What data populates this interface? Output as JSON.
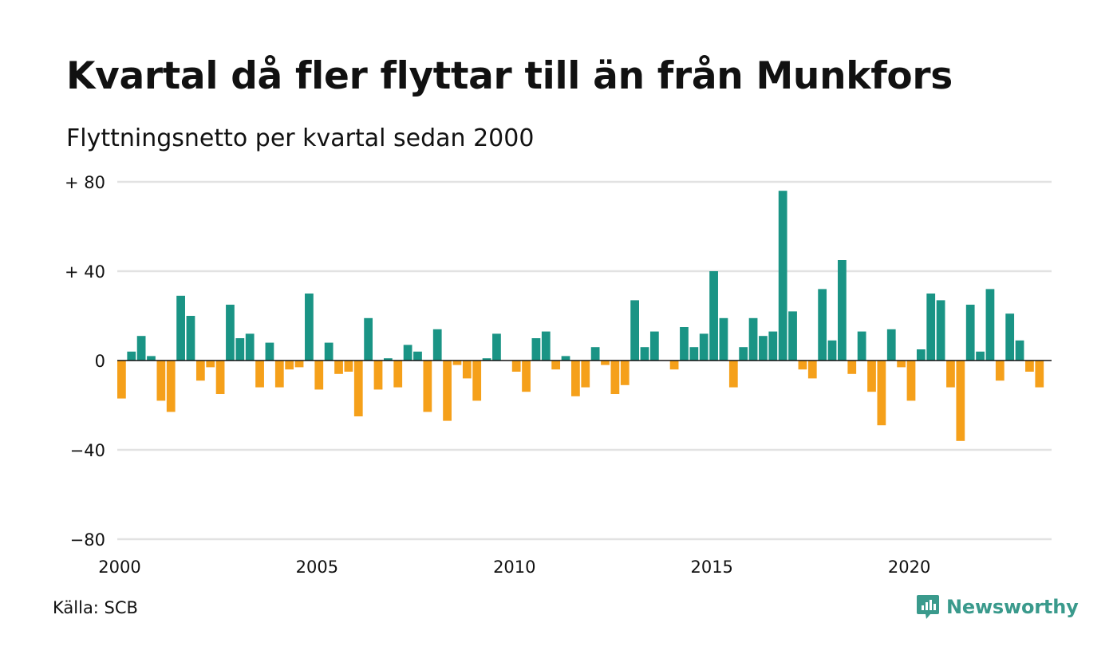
{
  "header": {
    "title": "Kvartal då fler flyttar till än från Munkfors",
    "subtitle": "Flyttningsnetto per kvartal sedan 2000"
  },
  "footer": {
    "source": "Källa: SCB",
    "brand": "Newsworthy",
    "brand_icon": "newsworthy-logo-icon"
  },
  "colors": {
    "positive": "#1a9485",
    "negative": "#f5a01a",
    "grid": "#e2e2e2",
    "zero_line": "#111111",
    "brand": "#3a9a8c"
  },
  "chart_data": {
    "type": "bar",
    "title": "Kvartal då fler flyttar till än från Munkfors",
    "subtitle": "Flyttningsnetto per kvartal sedan 2000",
    "xlabel": "",
    "ylabel": "",
    "ylim": [
      -80,
      80
    ],
    "yticks": [
      80,
      40,
      0,
      -40,
      -80
    ],
    "ytick_labels": [
      "+ 80",
      "+ 40",
      "0",
      "−40",
      "−80"
    ],
    "xticks": [
      2000,
      2005,
      2010,
      2015,
      2020
    ],
    "xtick_labels": [
      "2000",
      "2005",
      "2010",
      "2015",
      "2020"
    ],
    "grid": true,
    "legend": "none",
    "start_period": "2000-Q1",
    "end_period": "2023-Q2",
    "values": [
      -17,
      4,
      11,
      2,
      -18,
      -23,
      29,
      20,
      -9,
      -3,
      -15,
      25,
      10,
      12,
      -12,
      8,
      -12,
      -4,
      -3,
      30,
      -13,
      8,
      -6,
      -5,
      -25,
      19,
      -13,
      1,
      -12,
      7,
      4,
      -23,
      14,
      -27,
      -2,
      -8,
      -18,
      1,
      12,
      0,
      -5,
      -14,
      10,
      13,
      -4,
      2,
      -16,
      -12,
      6,
      -2,
      -15,
      -11,
      27,
      6,
      13,
      0,
      -4,
      15,
      6,
      12,
      40,
      19,
      -12,
      6,
      19,
      11,
      13,
      76,
      22,
      -4,
      -8,
      32,
      9,
      45,
      -6,
      13,
      -14,
      -29,
      14,
      -3,
      -18,
      5,
      30,
      27,
      -12,
      -36,
      25,
      4,
      32,
      -9,
      21,
      9,
      -5,
      -12
    ]
  }
}
